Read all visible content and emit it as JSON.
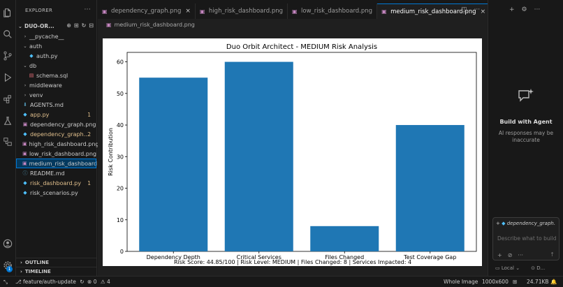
{
  "sidebar": {
    "title": "EXPLORER",
    "root": "DUO-OR...",
    "items": [
      {
        "label": "__pycache__",
        "kind": "folder",
        "depth": 1,
        "expanded": false,
        "badge": "",
        "modified": false,
        "selected": false
      },
      {
        "label": "auth",
        "kind": "folder",
        "depth": 1,
        "expanded": true,
        "badge": "",
        "modified": false,
        "selected": false
      },
      {
        "label": "auth.py",
        "kind": "python",
        "depth": 2,
        "expanded": false,
        "badge": "",
        "modified": false,
        "selected": false
      },
      {
        "label": "db",
        "kind": "folder",
        "depth": 1,
        "expanded": true,
        "badge": "",
        "modified": false,
        "selected": false
      },
      {
        "label": "schema.sql",
        "kind": "sql",
        "depth": 2,
        "expanded": false,
        "badge": "",
        "modified": false,
        "selected": false
      },
      {
        "label": "middleware",
        "kind": "folder",
        "depth": 1,
        "expanded": false,
        "badge": "",
        "modified": false,
        "selected": false
      },
      {
        "label": "venv",
        "kind": "folder",
        "depth": 1,
        "expanded": false,
        "badge": "",
        "modified": false,
        "selected": false
      },
      {
        "label": "AGENTS.md",
        "kind": "markdown",
        "depth": 1,
        "expanded": false,
        "badge": "",
        "modified": false,
        "selected": false
      },
      {
        "label": "app.py",
        "kind": "python",
        "depth": 1,
        "expanded": false,
        "badge": "1",
        "modified": true,
        "selected": false
      },
      {
        "label": "dependency_graph.png",
        "kind": "image",
        "depth": 1,
        "expanded": false,
        "badge": "",
        "modified": false,
        "selected": false
      },
      {
        "label": "dependency_graph....",
        "kind": "python",
        "depth": 1,
        "expanded": false,
        "badge": "2",
        "modified": true,
        "selected": false
      },
      {
        "label": "high_risk_dashboard.png",
        "kind": "image",
        "depth": 1,
        "expanded": false,
        "badge": "",
        "modified": false,
        "selected": false
      },
      {
        "label": "low_risk_dashboard.png",
        "kind": "image",
        "depth": 1,
        "expanded": false,
        "badge": "",
        "modified": false,
        "selected": false
      },
      {
        "label": "medium_risk_dashboard....",
        "kind": "image",
        "depth": 1,
        "expanded": false,
        "badge": "",
        "modified": false,
        "selected": true
      },
      {
        "label": "README.md",
        "kind": "info",
        "depth": 1,
        "expanded": false,
        "badge": "",
        "modified": false,
        "selected": false
      },
      {
        "label": "risk_dashboard.py",
        "kind": "python",
        "depth": 1,
        "expanded": false,
        "badge": "1",
        "modified": true,
        "selected": false
      },
      {
        "label": "risk_scenarios.py",
        "kind": "python",
        "depth": 1,
        "expanded": false,
        "badge": "",
        "modified": false,
        "selected": false
      }
    ],
    "outline_label": "OUTLINE",
    "timeline_label": "TIMELINE"
  },
  "tabs": [
    {
      "label": "dependency_graph.png",
      "active": false,
      "closable": true
    },
    {
      "label": "high_risk_dashboard.png",
      "active": false,
      "closable": false
    },
    {
      "label": "low_risk_dashboard.png",
      "active": false,
      "closable": false
    },
    {
      "label": "medium_risk_dashboard.png",
      "active": true,
      "closable": true
    }
  ],
  "breadcrumb": "medium_risk_dashboard.png",
  "chart_data": {
    "type": "bar",
    "title": "Duo Orbit Architect - MEDIUM Risk Analysis",
    "ylabel": "Risk Contribution",
    "xlabel": "",
    "categories": [
      "Dependency Depth",
      "Critical Services",
      "Files Changed",
      "Test Coverage Gap"
    ],
    "values": [
      55,
      60,
      8,
      40
    ],
    "ylim": [
      0,
      63
    ],
    "yticks": [
      0,
      10,
      20,
      30,
      40,
      50,
      60
    ],
    "bar_color": "#1f77b4",
    "grid": false,
    "footer": "Risk Score: 44.85/100 | Risk Level: MEDIUM | Files Changed: 8 | Services Impacted: 4"
  },
  "right_panel": {
    "title": "Build with Agent",
    "subtitle": "AI responses may be inaccurate",
    "chip": "dependency_graph.",
    "placeholder": "Describe what to build",
    "mode": "Local",
    "model": "D..."
  },
  "status": {
    "branch": "feature/auth-update",
    "errors": "0",
    "warnings": "4",
    "view": "Whole Image",
    "dimensions": "1000x600",
    "size": "24.71KB"
  },
  "account_badge": "1",
  "colors": {
    "accent": "#0078d4",
    "modified": "#e2c08d",
    "bar": "#1f77b4"
  }
}
